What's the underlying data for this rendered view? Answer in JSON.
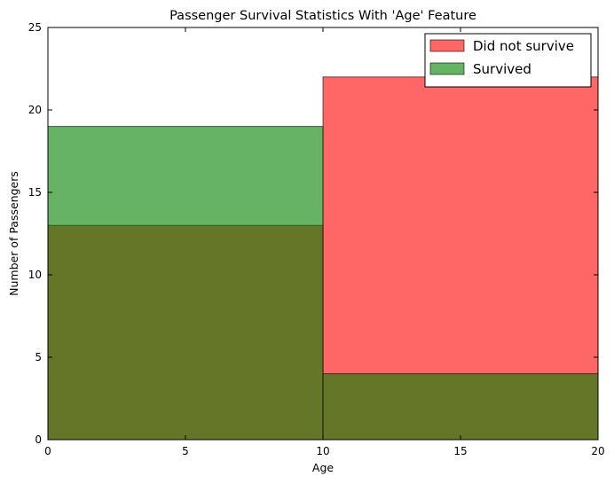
{
  "chart_data": {
    "type": "bar",
    "title": "Passenger Survival Statistics With 'Age' Feature",
    "xlabel": "Age",
    "ylabel": "Number of Passengers",
    "xlim": [
      0,
      20
    ],
    "ylim": [
      0,
      25
    ],
    "xticks": [
      "0",
      "5",
      "10",
      "15",
      "20"
    ],
    "yticks": [
      "0",
      "5",
      "10",
      "15",
      "20",
      "25"
    ],
    "bins": [
      [
        0,
        10
      ],
      [
        10,
        20
      ]
    ],
    "series": [
      {
        "name": "Did not survive",
        "values": [
          13,
          22
        ],
        "color": "#ff0000",
        "alpha": 0.6
      },
      {
        "name": "Survived",
        "values": [
          19,
          4
        ],
        "color": "#008000",
        "alpha": 0.6
      }
    ],
    "overlap_color": "#6a7129",
    "legend": {
      "position": "top-right"
    },
    "grid": false
  }
}
